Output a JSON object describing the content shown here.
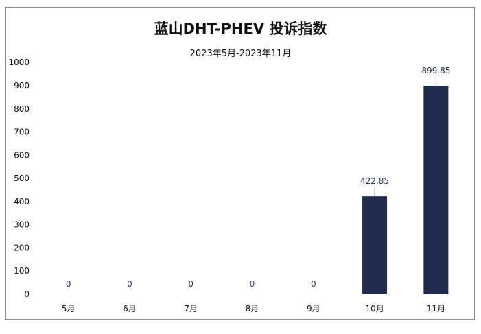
{
  "chart_data": {
    "type": "bar",
    "title": "蓝山DHT-PHEV 投诉指数",
    "subtitle": "2023年5月-2023年11月",
    "categories": [
      "5月",
      "6月",
      "7月",
      "8月",
      "9月",
      "10月",
      "11月"
    ],
    "values": [
      0,
      0,
      0,
      0,
      0,
      422.85,
      899.85
    ],
    "data_labels": [
      "0",
      "0",
      "0",
      "0",
      "0",
      "422.85",
      "899.85"
    ],
    "yticks": [
      "0",
      "100",
      "200",
      "300",
      "400",
      "500",
      "600",
      "700",
      "800",
      "900",
      "1000"
    ],
    "ylim": [
      0,
      1000
    ],
    "xlabel": "",
    "ylabel": "",
    "grid": false,
    "bar_color": "#1f2a4d",
    "label_color": "#2a3558"
  }
}
